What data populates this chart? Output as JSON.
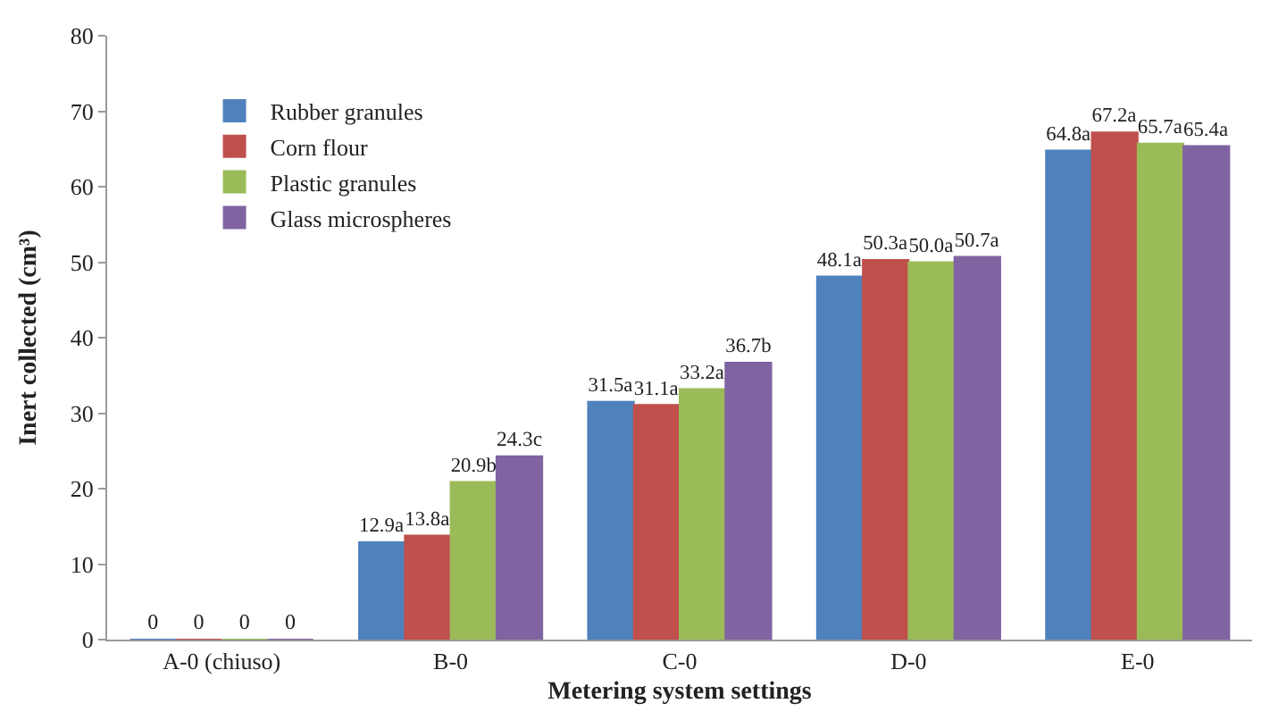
{
  "chart_data": {
    "type": "bar",
    "xlabel": "Metering system settings",
    "ylabel": "Inert collected (cm³)",
    "categories": [
      "A-0 (chiuso)",
      "B-0",
      "C-0",
      "D-0",
      "E-0"
    ],
    "series": [
      {
        "name": "Rubber granules",
        "color": "#4f81bd",
        "values": [
          0,
          12.9,
          31.5,
          48.1,
          64.8
        ],
        "value_labels": [
          "0",
          "12.9a",
          "31.5a",
          "48.1a",
          "64.8a"
        ]
      },
      {
        "name": "Corn flour",
        "color": "#c0504d",
        "values": [
          0,
          13.8,
          31.1,
          50.3,
          67.2
        ],
        "value_labels": [
          "0",
          "13.8a",
          "31.1a",
          "50.3a",
          "67.2a"
        ]
      },
      {
        "name": "Plastic granules",
        "color": "#9bbb59",
        "values": [
          0,
          20.9,
          33.2,
          50.0,
          65.7
        ],
        "value_labels": [
          "0",
          "20.9b",
          "33.2a",
          "50.0a",
          "65.7a"
        ]
      },
      {
        "name": "Glass microspheres",
        "color": "#8064a2",
        "values": [
          0,
          24.3,
          36.7,
          50.7,
          65.4
        ],
        "value_labels": [
          "0",
          "24.3c",
          "36.7b",
          "50.7a",
          "65.4a"
        ]
      }
    ],
    "ylim": [
      0,
      80
    ],
    "yticks": [
      0,
      10,
      20,
      30,
      40,
      50,
      60,
      70,
      80
    ],
    "grid": false,
    "legend": "top left"
  }
}
